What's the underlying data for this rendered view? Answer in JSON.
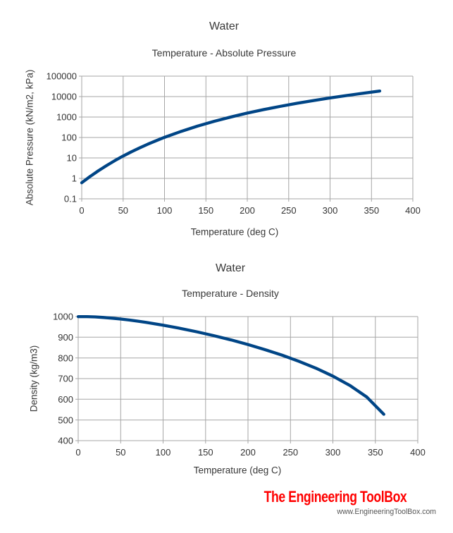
{
  "branding": {
    "logo": "The Engineering ToolBox",
    "url": "www.EngineeringToolBox.com",
    "logo_color": "#ff0000",
    "url_color": "#555555"
  },
  "chart_data": [
    {
      "type": "line",
      "title": "Water",
      "subtitle": "Temperature - Absolute Pressure",
      "xlabel": "Temperature (deg C)",
      "ylabel": "Absolute Pressure (kN/m2, kPa)",
      "x_scale": "linear",
      "y_scale": "log",
      "xlim": [
        0,
        400
      ],
      "ylim": [
        0.1,
        100000
      ],
      "xticks": [
        0,
        50,
        100,
        150,
        200,
        250,
        300,
        350,
        400
      ],
      "yticks": [
        0.1,
        1,
        10,
        100,
        1000,
        10000,
        100000
      ],
      "grid": true,
      "legend": "none",
      "line_color": "#004586",
      "grid_color": "#a6a6a6",
      "series": [
        {
          "name": "pressure-curve",
          "x": [
            0,
            10,
            20,
            30,
            40,
            50,
            60,
            70,
            80,
            90,
            100,
            120,
            140,
            160,
            180,
            200,
            220,
            240,
            260,
            280,
            300,
            320,
            340,
            360
          ],
          "y": [
            0.61,
            1.23,
            2.34,
            4.25,
            7.38,
            12.35,
            19.94,
            31.2,
            47.4,
            70.1,
            101.3,
            198.5,
            361.3,
            617.8,
            1002,
            1554,
            2318,
            3345,
            4689,
            6413,
            8584,
            11279,
            14594,
            18655
          ]
        }
      ]
    },
    {
      "type": "line",
      "title": "Water",
      "subtitle": "Temperature - Density",
      "xlabel": "Temperature (deg C)",
      "ylabel": "Density (kg/m3)",
      "x_scale": "linear",
      "y_scale": "linear",
      "xlim": [
        0,
        400
      ],
      "ylim": [
        400,
        1000
      ],
      "xticks": [
        0,
        50,
        100,
        150,
        200,
        250,
        300,
        350,
        400
      ],
      "yticks": [
        400,
        500,
        600,
        700,
        800,
        900,
        1000
      ],
      "grid": true,
      "legend": "none",
      "line_color": "#004586",
      "grid_color": "#a6a6a6",
      "series": [
        {
          "name": "density-curve",
          "x": [
            0,
            10,
            20,
            30,
            40,
            50,
            60,
            70,
            80,
            90,
            100,
            120,
            140,
            160,
            180,
            200,
            220,
            240,
            260,
            280,
            300,
            320,
            340,
            360
          ],
          "y": [
            999.8,
            999.7,
            998.2,
            995.6,
            992.2,
            988.0,
            983.2,
            977.8,
            971.8,
            965.3,
            958.4,
            943.1,
            926.1,
            907.4,
            887.0,
            864.7,
            840.2,
            813.4,
            783.6,
            750.3,
            712.1,
            667.1,
            610.7,
            527.6
          ]
        }
      ]
    }
  ]
}
